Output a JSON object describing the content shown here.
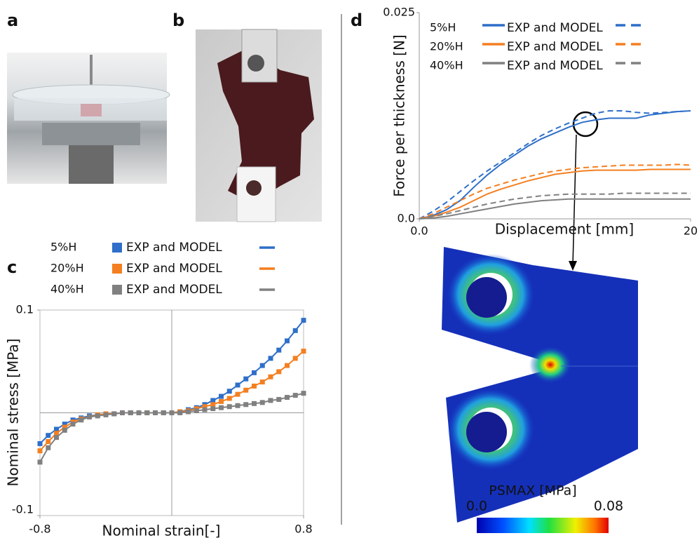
{
  "panel_labels": [
    "a",
    "b",
    "c",
    "d"
  ],
  "contour": {
    "title": "PSMAX [MPa]",
    "ticks": [
      {
        "value": 0,
        "label": "0.0"
      },
      0.08
    ]
  },
  "chart_data": [
    {
      "type": "line",
      "x_label": "Nominal strain[-]",
      "y_label": "Nominal stress [MPa]",
      "x": [
        -0.8,
        -0.75,
        -0.7,
        -0.65,
        -0.6,
        -0.55,
        -0.5,
        -0.45,
        -0.4,
        -0.35,
        -0.3,
        -0.25,
        -0.2,
        -0.15,
        -0.1,
        -0.05,
        0,
        0.05,
        0.1,
        0.15,
        0.2,
        0.25,
        0.3,
        0.35,
        0.4,
        0.45,
        0.5,
        0.55,
        0.6,
        0.65,
        0.7,
        0.75,
        0.8
      ],
      "xlim": [
        -0.8,
        0.8
      ],
      "xticks": [
        -0.8,
        0.8
      ],
      "ylim": [
        -0.1,
        0.1
      ],
      "yticks": [
        -0.1,
        0.1
      ],
      "series": [
        {
          "name": "5%H",
          "label": "EXP and MODEL",
          "color": "#2f6fc9",
          "values": [
            -0.03,
            -0.022,
            -0.016,
            -0.011,
            -0.007,
            -0.005,
            -0.003,
            -0.002,
            -0.001,
            -0.001,
            0,
            0,
            0,
            0,
            0,
            0,
            0,
            0.001,
            0.003,
            0.005,
            0.008,
            0.012,
            0.016,
            0.021,
            0.027,
            0.033,
            0.039,
            0.046,
            0.053,
            0.061,
            0.07,
            0.08,
            0.09
          ]
        },
        {
          "name": "20%H",
          "label": "EXP and MODEL",
          "color": "#f47f20",
          "values": [
            -0.037,
            -0.028,
            -0.02,
            -0.014,
            -0.009,
            -0.006,
            -0.004,
            -0.002,
            -0.001,
            -0.001,
            0,
            0,
            0,
            0,
            0,
            0,
            0,
            0.001,
            0.002,
            0.004,
            0.006,
            0.008,
            0.011,
            0.014,
            0.018,
            0.022,
            0.026,
            0.03,
            0.035,
            0.04,
            0.046,
            0.053,
            0.06
          ]
        },
        {
          "name": "40%H",
          "label": "EXP and MODEL",
          "color": "#808080",
          "values": [
            -0.048,
            -0.034,
            -0.024,
            -0.017,
            -0.011,
            -0.007,
            -0.004,
            -0.003,
            -0.002,
            -0.001,
            0,
            0,
            0,
            0,
            0,
            0,
            0,
            0,
            0.001,
            0.002,
            0.003,
            0.004,
            0.005,
            0.006,
            0.007,
            0.008,
            0.009,
            0.01,
            0.012,
            0.013,
            0.015,
            0.017,
            0.019
          ]
        }
      ]
    },
    {
      "type": "line-pair",
      "x_label": "Displacement [mm]",
      "y_label": "Force per thickness [N]",
      "x": [
        0,
        1,
        2,
        3,
        4,
        5,
        6,
        7,
        8,
        9,
        10,
        11,
        12,
        13,
        14,
        15,
        16,
        17,
        18,
        19,
        20
      ],
      "xlim": [
        0,
        20
      ],
      "xticks": [
        {
          "value": 0,
          "label": "0.0"
        },
        20
      ],
      "ylim": [
        0,
        0.025
      ],
      "yticks": [
        {
          "value": 0,
          "label": "0.0"
        },
        0.025
      ],
      "series": [
        {
          "name": "5%H",
          "label": "EXP and MODEL",
          "color": "#2f6fc9",
          "values": [
            0,
            0.0004,
            0.0011,
            0.0022,
            0.0038,
            0.0053,
            0.0066,
            0.0077,
            0.0088,
            0.0097,
            0.0104,
            0.0111,
            0.0117,
            0.012,
            0.0122,
            0.0122,
            0.0122,
            0.0126,
            0.0128,
            0.013,
            0.0131
          ],
          "model_values": [
            0,
            0.0009,
            0.002,
            0.0033,
            0.0046,
            0.0058,
            0.0069,
            0.008,
            0.0091,
            0.0101,
            0.0109,
            0.0116,
            0.0122,
            0.0128,
            0.0131,
            0.0131,
            0.0129,
            0.0128,
            0.0129,
            0.013,
            0.0131
          ]
        },
        {
          "name": "20%H",
          "label": "EXP and MODEL",
          "color": "#f47f20",
          "values": [
            0,
            0.0003,
            0.0008,
            0.0014,
            0.0022,
            0.003,
            0.0036,
            0.0041,
            0.0046,
            0.005,
            0.0054,
            0.0056,
            0.0058,
            0.0059,
            0.0059,
            0.0059,
            0.0059,
            0.006,
            0.006,
            0.006,
            0.006
          ],
          "model_values": [
            0,
            0.0006,
            0.0014,
            0.0022,
            0.003,
            0.0037,
            0.0042,
            0.0047,
            0.0051,
            0.0055,
            0.0058,
            0.006,
            0.0062,
            0.0063,
            0.0064,
            0.0065,
            0.0065,
            0.0065,
            0.0065,
            0.0066,
            0.0065
          ]
        },
        {
          "name": "40%H",
          "label": "EXP and MODEL",
          "color": "#808080",
          "values": [
            0,
            0.0001,
            0.0003,
            0.0006,
            0.0009,
            0.0012,
            0.0015,
            0.0018,
            0.002,
            0.0022,
            0.0023,
            0.0024,
            0.0024,
            0.0024,
            0.0024,
            0.0024,
            0.0024,
            0.0024,
            0.0024,
            0.0024,
            0.0024
          ],
          "model_values": [
            0,
            0.0003,
            0.0006,
            0.001,
            0.0014,
            0.0018,
            0.0021,
            0.0024,
            0.0026,
            0.0028,
            0.0029,
            0.003,
            0.003,
            0.003,
            0.003,
            0.0031,
            0.0031,
            0.0031,
            0.0031,
            0.0031,
            0.0031
          ]
        }
      ]
    }
  ]
}
